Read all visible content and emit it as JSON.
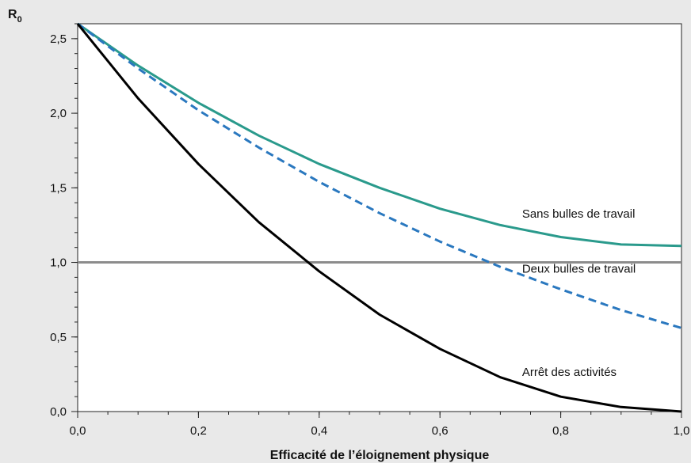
{
  "chart_data": {
    "type": "line",
    "xlabel": "Efficacité de l’éloignement physique",
    "ylabel_main": "R",
    "ylabel_sub": "0",
    "xlim": [
      0,
      1
    ],
    "ylim": [
      0,
      2.6
    ],
    "x_ticks": [
      {
        "value": 0.0,
        "label": "0,0"
      },
      {
        "value": 0.2,
        "label": "0,2"
      },
      {
        "value": 0.4,
        "label": "0,4"
      },
      {
        "value": 0.6,
        "label": "0,6"
      },
      {
        "value": 0.8,
        "label": "0,8"
      },
      {
        "value": 1.0,
        "label": "1,0"
      }
    ],
    "x_minor_step": 0.05,
    "y_ticks": [
      {
        "value": 0.0,
        "label": "0,0"
      },
      {
        "value": 0.5,
        "label": "0,5"
      },
      {
        "value": 1.0,
        "label": "1,0"
      },
      {
        "value": 1.5,
        "label": "1,5"
      },
      {
        "value": 2.0,
        "label": "2,0"
      },
      {
        "value": 2.5,
        "label": "2,5"
      }
    ],
    "y_minor_step": 0.1,
    "grid": false,
    "reference_line": {
      "y": 1.0,
      "color": "#8c8c8c"
    },
    "series": [
      {
        "name": "Sans bulles de travail",
        "color": "#2a9a8c",
        "style": "solid",
        "x": [
          0,
          0.1,
          0.2,
          0.3,
          0.4,
          0.5,
          0.6,
          0.7,
          0.8,
          0.9,
          1.0
        ],
        "y": [
          2.6,
          2.32,
          2.07,
          1.85,
          1.66,
          1.5,
          1.36,
          1.25,
          1.17,
          1.12,
          1.11
        ]
      },
      {
        "name": "Deux bulles de travail",
        "color": "#2a78bf",
        "style": "dashed",
        "x": [
          0,
          0.1,
          0.2,
          0.3,
          0.4,
          0.5,
          0.6,
          0.7,
          0.8,
          0.9,
          1.0
        ],
        "y": [
          2.6,
          2.3,
          2.02,
          1.77,
          1.54,
          1.33,
          1.14,
          0.97,
          0.82,
          0.68,
          0.56
        ]
      },
      {
        "name": "Arrêt des activités",
        "color": "#000000",
        "style": "solid",
        "x": [
          0,
          0.1,
          0.2,
          0.3,
          0.4,
          0.5,
          0.6,
          0.7,
          0.8,
          0.9,
          1.0
        ],
        "y": [
          2.6,
          2.1,
          1.66,
          1.27,
          0.94,
          0.65,
          0.42,
          0.23,
          0.1,
          0.03,
          0.0
        ]
      }
    ],
    "series_labels": [
      {
        "text": "Sans bulles de travail",
        "x": 0.736,
        "y": 1.3
      },
      {
        "text": "Deux bulles de travail",
        "x": 0.736,
        "y": 0.93
      },
      {
        "text": "Arrêt des activités",
        "x": 0.736,
        "y": 0.24
      }
    ]
  }
}
